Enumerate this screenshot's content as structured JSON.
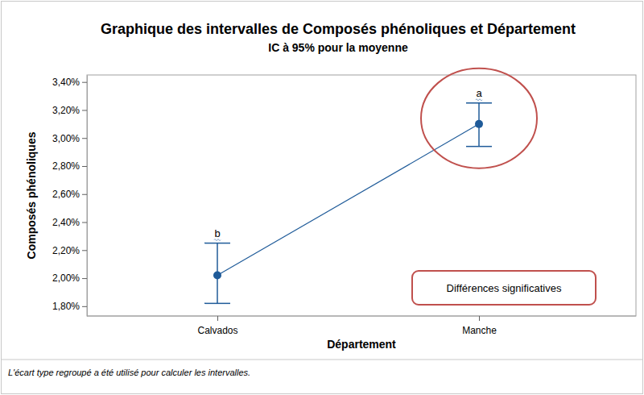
{
  "chart_data": {
    "type": "interval",
    "title": "Graphique des intervalles de Composés phénoliques et Département",
    "subtitle": "IC à 95% pour la moyenne",
    "xlabel": "Département",
    "ylabel": "Composés phénoliques",
    "categories": [
      "Calvados",
      "Manche"
    ],
    "values": [
      2.02,
      3.1
    ],
    "ci_low": [
      1.82,
      2.94
    ],
    "ci_high": [
      2.25,
      3.25
    ],
    "group_letters": [
      "b",
      "a"
    ],
    "color": "#1f5b99",
    "marker": "circle",
    "line_style": "solid",
    "grid": false,
    "ylim": [
      1.73,
      3.45
    ],
    "yticks": [
      {
        "value": 1.8,
        "label": "1,80%"
      },
      {
        "value": 2.0,
        "label": "2,00%"
      },
      {
        "value": 2.2,
        "label": "2,20%"
      },
      {
        "value": 2.4,
        "label": "2,40%"
      },
      {
        "value": 2.6,
        "label": "2,60%"
      },
      {
        "value": 2.8,
        "label": "2,80%"
      },
      {
        "value": 3.0,
        "label": "3,00%"
      },
      {
        "value": 3.2,
        "label": "3,20%"
      },
      {
        "value": 3.4,
        "label": "3,40%"
      }
    ],
    "annotation": "Différences significatives",
    "footnote": "L'écart type regroupé a été utilisé pour calculer les intervalles."
  }
}
